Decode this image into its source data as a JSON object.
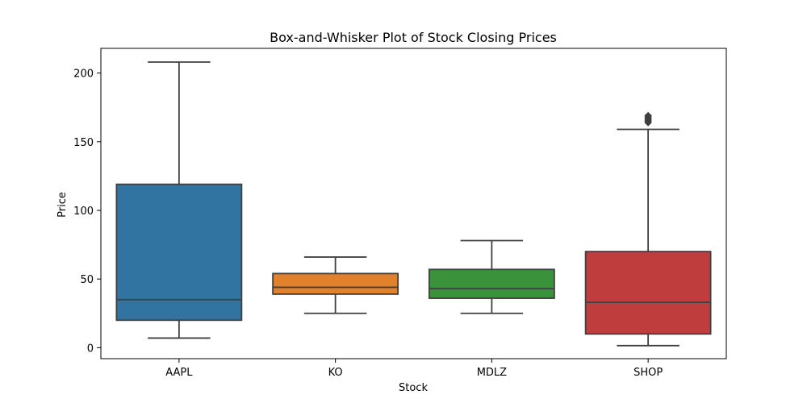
{
  "chart_data": {
    "type": "box",
    "title": "Box-and-Whisker Plot of Stock Closing Prices",
    "xlabel": "Stock",
    "ylabel": "Price",
    "ylim": [
      -8,
      218
    ],
    "yticks": [
      0,
      50,
      100,
      150,
      200
    ],
    "grid": false,
    "categories": [
      "AAPL",
      "KO",
      "MDLZ",
      "SHOP"
    ],
    "boxes": [
      {
        "category": "AAPL",
        "color": "#3274a1",
        "whisker_low": 7,
        "q1": 20,
        "median": 35,
        "q3": 119,
        "whisker_high": 208,
        "outliers": []
      },
      {
        "category": "KO",
        "color": "#e1812c",
        "whisker_low": 25,
        "q1": 39,
        "median": 44,
        "q3": 54,
        "whisker_high": 66,
        "outliers": []
      },
      {
        "category": "MDLZ",
        "color": "#3a923a",
        "whisker_low": 25,
        "q1": 36,
        "median": 43,
        "q3": 57,
        "whisker_high": 78,
        "outliers": []
      },
      {
        "category": "SHOP",
        "color": "#c03d3e",
        "whisker_low": 1.5,
        "q1": 10,
        "median": 33,
        "q3": 70,
        "whisker_high": 159,
        "outliers": [
          164,
          165,
          166,
          167,
          168,
          169
        ]
      }
    ]
  }
}
